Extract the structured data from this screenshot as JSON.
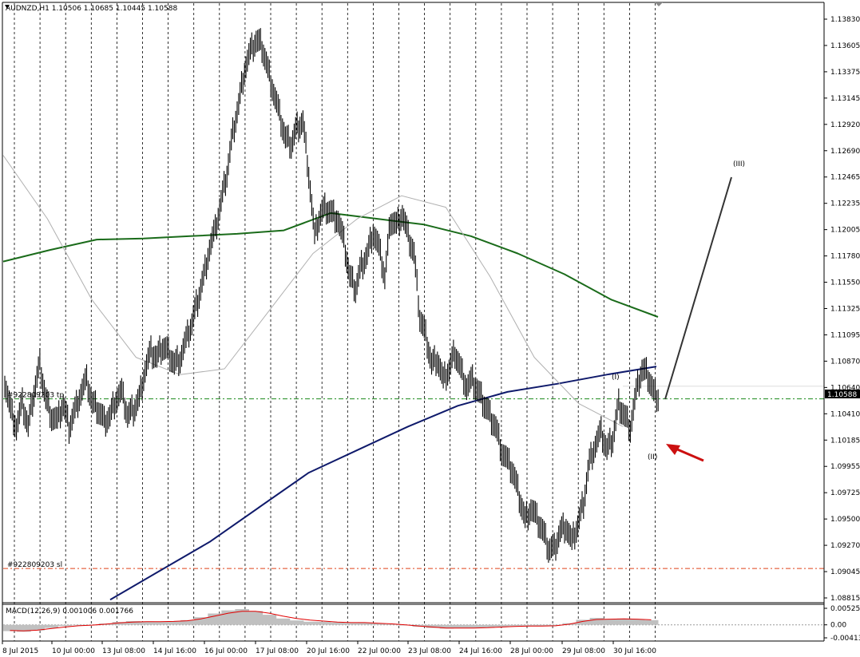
{
  "header": {
    "text": "AUDNZD,H1  1.10506 1.10685 1.10445 1.10588"
  },
  "macd_label": "MACD(12,26,9) 0.001006 0.001766",
  "order_labels": {
    "sl": "#922809203 sl",
    "tp": "#922809203 tp"
  },
  "annotations": {
    "wave1": "(I)",
    "wave2": "(II)",
    "wave3": "(III)"
  },
  "colors": {
    "price": "#000000",
    "ma_green": "#1a6b1a",
    "ma_navy": "#0f1a6b",
    "ma_gray": "#b0b0b0",
    "sl_line": "#e0441a",
    "tp_line": "#1a8a1a",
    "macd_hist": "#c0c0c0",
    "macd_signal": "#e00000",
    "arrow": "#cc1010",
    "current_price_bg": "#000000"
  },
  "chart_data": [
    {
      "type": "line",
      "symbol": "AUDNZD",
      "timeframe": "H1",
      "y_ticks": [
        "1.13830",
        "1.13605",
        "1.13375",
        "1.13145",
        "1.12920",
        "1.12690",
        "1.12465",
        "1.12235",
        "1.12005",
        "1.11780",
        "1.11550",
        "1.11325",
        "1.11095",
        "1.10870",
        "1.10640",
        "1.10410",
        "1.10185",
        "1.09955",
        "1.09725",
        "1.09500",
        "1.09270",
        "1.09045",
        "1.08815"
      ],
      "ylim": [
        1.088,
        1.1405
      ],
      "x_ticks": [
        "8 Jul 2015",
        "10 Jul 00:00",
        "13 Jul 08:00",
        "14 Jul 16:00",
        "16 Jul 00:00",
        "17 Jul 08:00",
        "20 Jul 16:00",
        "22 Jul 00:00",
        "23 Jul 08:00",
        "24 Jul 16:00",
        "28 Jul 00:00",
        "29 Jul 08:00",
        "30 Jul 16:00"
      ],
      "grid": "vertical-dashed",
      "current_price": "1.10588",
      "levels": {
        "sl": 1.0907,
        "tp": 1.1054
      },
      "series": [
        {
          "kind": "close",
          "values": [
            1.107,
            1.1045,
            1.103,
            1.105,
            1.103,
            1.106,
            1.1085,
            1.1055,
            1.104,
            1.1035,
            1.105,
            1.103,
            1.1045,
            1.106,
            1.107,
            1.105,
            1.1045,
            1.1035,
            1.104,
            1.1055,
            1.106,
            1.104,
            1.1045,
            1.1055,
            1.108,
            1.1095,
            1.109,
            1.11,
            1.1095,
            1.1085,
            1.109,
            1.1105,
            1.112,
            1.114,
            1.116,
            1.1185,
            1.12,
            1.1225,
            1.125,
            1.1285,
            1.131,
            1.134,
            1.1355,
            1.1365,
            1.136,
            1.134,
            1.132,
            1.13,
            1.128,
            1.1275,
            1.129,
            1.1295,
            1.125,
            1.1195,
            1.1215,
            1.122,
            1.1215,
            1.121,
            1.119,
            1.116,
            1.115,
            1.117,
            1.118,
            1.12,
            1.1185,
            1.116,
            1.121,
            1.1205,
            1.1215,
            1.1195,
            1.118,
            1.1125,
            1.111,
            1.1085,
            1.109,
            1.107,
            1.108,
            1.1095,
            1.108,
            1.1065,
            1.107,
            1.106,
            1.105,
            1.104,
            1.103,
            1.101,
            1.1,
            1.099,
            1.097,
            1.095,
            1.096,
            1.095,
            1.094,
            1.0925,
            1.0925,
            1.094,
            1.0945,
            1.093,
            1.0945,
            1.0965,
            1.1,
            1.1015,
            1.1025,
            1.101,
            1.102,
            1.105,
            1.104,
            1.103,
            1.106,
            1.108,
            1.1075,
            1.106,
            1.1055
          ]
        },
        {
          "kind": "ma-green",
          "values": [
            1.1173,
            1.1183,
            1.1192,
            1.1193,
            1.1195,
            1.1197,
            1.12,
            1.1215,
            1.121,
            1.1205,
            1.1195,
            1.118,
            1.1162,
            1.114,
            1.1125
          ]
        },
        {
          "kind": "ma-navy",
          "values": [
            1.088,
            1.0905,
            1.093,
            1.096,
            1.099,
            1.101,
            1.103,
            1.1048,
            1.106,
            1.1067,
            1.1075,
            1.1082
          ]
        },
        {
          "kind": "ma-gray",
          "values": [
            1.1265,
            1.121,
            1.114,
            1.109,
            1.1075,
            1.108,
            1.113,
            1.118,
            1.121,
            1.123,
            1.122,
            1.116,
            1.109,
            1.105,
            1.103
          ]
        }
      ],
      "macd": {
        "ylim": [
          -0.00413,
          0.00525
        ],
        "y_ticks": [
          "0.00525",
          "0.00",
          "-0.004137"
        ],
        "hist": [
          -0.002,
          -0.0022,
          -0.0018,
          -0.001,
          -0.0004,
          -0.0002,
          0.0,
          0.0004,
          0.0009,
          0.0012,
          0.0011,
          0.001,
          0.0012,
          0.0015,
          0.0024,
          0.0036,
          0.0046,
          0.005,
          0.0044,
          0.0032,
          0.002,
          0.0014,
          0.001,
          0.001,
          0.0008,
          0.0006,
          0.0007,
          0.0004,
          0.0002,
          -0.0002,
          -0.0006,
          -0.001,
          -0.0012,
          -0.001,
          -0.0011,
          -0.0009,
          -0.0006,
          -0.0004,
          -0.0003,
          -0.0004,
          -0.0002,
          0.0005,
          0.0016,
          0.0022,
          0.0018,
          0.002,
          0.0018,
          0.0015
        ],
        "signal": [
          -0.0018,
          -0.0019,
          -0.0017,
          -0.0012,
          -0.0007,
          -0.0003,
          -0.0001,
          0.0002,
          0.0006,
          0.0009,
          0.001,
          0.001,
          0.0011,
          0.0013,
          0.0019,
          0.0028,
          0.0037,
          0.0043,
          0.0043,
          0.0037,
          0.0028,
          0.002,
          0.0015,
          0.0012,
          0.0009,
          0.0007,
          0.0007,
          0.0005,
          0.0003,
          0.0,
          -0.0004,
          -0.0007,
          -0.001,
          -0.001,
          -0.001,
          -0.0009,
          -0.0007,
          -0.0005,
          -0.0004,
          -0.0004,
          -0.0003,
          0.0002,
          0.0011,
          0.0017,
          0.0018,
          0.0019,
          0.0018,
          0.0016
        ]
      }
    }
  ]
}
